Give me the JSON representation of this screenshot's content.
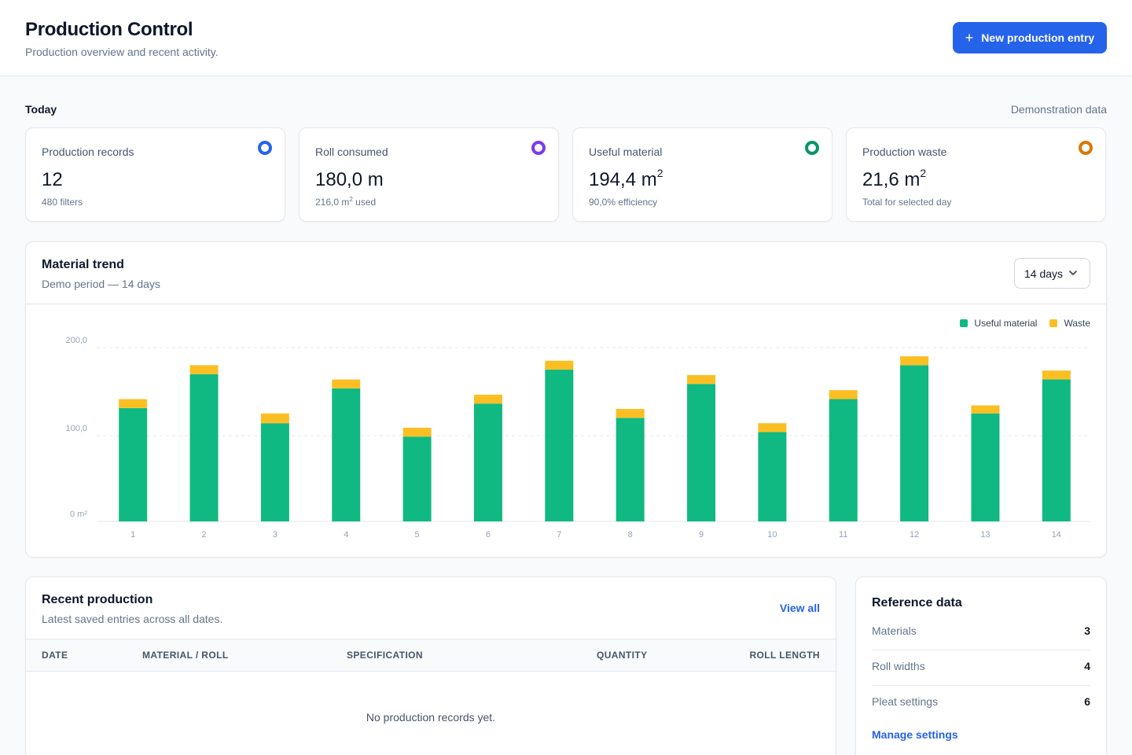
{
  "header": {
    "title": "Production Control",
    "subtitle": "Production overview and recent activity.",
    "new_entry_icon": "plus-icon",
    "new_entry_label": "New production entry"
  },
  "today": {
    "label": "Today",
    "demo_label": "Demonstration data"
  },
  "stats": [
    {
      "label": "Production records",
      "value": "12",
      "unit_sup": "",
      "sub": "480 filters",
      "sub_unit_sup": "",
      "sub_tail": "",
      "ring_color": "#2563eb"
    },
    {
      "label": "Roll consumed",
      "value": "180,0 m",
      "unit_sup": "",
      "sub": "216,0 m",
      "sub_unit_sup": "2",
      "sub_tail": " used",
      "ring_color": "#7c3aed"
    },
    {
      "label": "Useful material",
      "value": "194,4 m",
      "unit_sup": "2",
      "sub": "90,0% efficiency",
      "sub_unit_sup": "",
      "sub_tail": "",
      "ring_color": "#059669"
    },
    {
      "label": "Production waste",
      "value": "21,6 m",
      "unit_sup": "2",
      "sub": "Total for selected day",
      "sub_unit_sup": "",
      "sub_tail": "",
      "ring_color": "#d97706"
    }
  ],
  "trend": {
    "title": "Material trend",
    "subtitle": "Demo period — 14 days",
    "range_select": "14 days",
    "select_icon": "chevron-down-icon"
  },
  "chart_data": {
    "type": "bar",
    "stacked": true,
    "categories": [
      "1",
      "2",
      "3",
      "4",
      "5",
      "6",
      "7",
      "8",
      "9",
      "10",
      "11",
      "12",
      "13",
      "14"
    ],
    "series": [
      {
        "name": "Useful material",
        "color": "#10b981",
        "values": [
          127,
          165,
          110,
          149,
          95,
          132,
          170,
          116,
          154,
          100,
          137,
          175,
          121,
          159
        ]
      },
      {
        "name": "Waste",
        "color": "#fbbf24",
        "values": [
          10,
          10,
          11,
          10,
          10,
          10,
          10,
          10,
          10,
          10,
          10,
          10,
          9,
          10
        ]
      }
    ],
    "y_tick_labels": [
      "0 m²",
      "100,0",
      "200,0"
    ],
    "y_tick_values": [
      0,
      100,
      200
    ],
    "ylim": [
      0,
      200
    ],
    "grid": true,
    "legend_position": "top-right"
  },
  "recent": {
    "title": "Recent production",
    "subtitle": "Latest saved entries across all dates.",
    "view_all": "View all",
    "columns": [
      "DATE",
      "MATERIAL / ROLL",
      "SPECIFICATION",
      "QUANTITY",
      "ROLL LENGTH"
    ],
    "empty": "No production records yet."
  },
  "reference": {
    "title": "Reference data",
    "rows": [
      {
        "label": "Materials",
        "value": "3"
      },
      {
        "label": "Roll widths",
        "value": "4"
      },
      {
        "label": "Pleat settings",
        "value": "6"
      }
    ],
    "manage": "Manage settings"
  }
}
